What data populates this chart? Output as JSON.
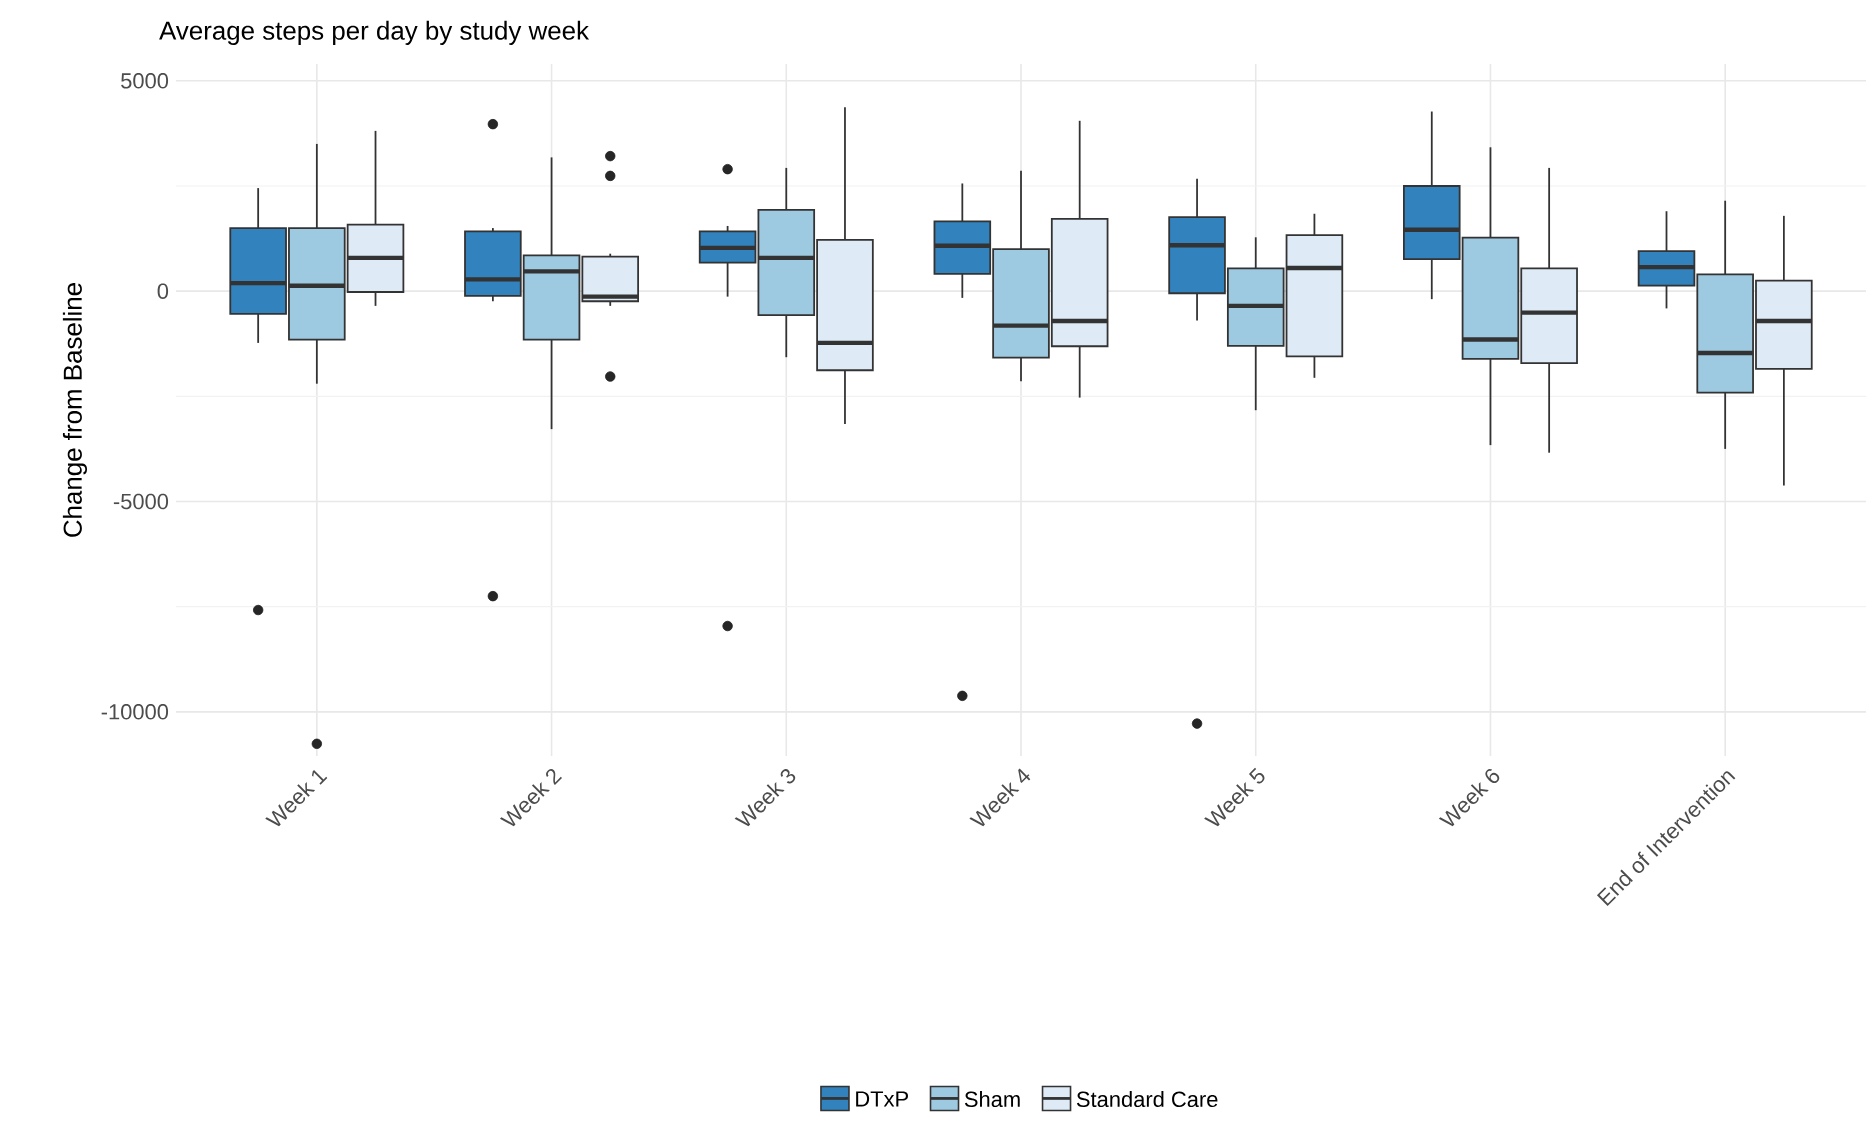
{
  "chart_data": {
    "type": "box",
    "title": "Average steps per day by study week",
    "ylabel": "Change from Baseline",
    "categories": [
      "Week 1",
      "Week 2",
      "Week 3",
      "Week 4",
      "Week 5",
      "Week 6",
      "End of Intervention"
    ],
    "ylim": [
      -11050,
      5400
    ],
    "yticks": [
      -10000,
      -5000,
      0,
      5000
    ],
    "grid": true,
    "legend": "bottom",
    "series": [
      {
        "name": "DTxP",
        "color": "#3182bd",
        "boxes": [
          {
            "low": -1230,
            "q1": -540,
            "median": 190,
            "q3": 1500,
            "high": 2450,
            "outliers": [
              -7580
            ]
          },
          {
            "low": -240,
            "q1": -110,
            "median": 280,
            "q3": 1420,
            "high": 1500,
            "outliers": [
              3970,
              -7250
            ]
          },
          {
            "low": -130,
            "q1": 680,
            "median": 1030,
            "q3": 1420,
            "high": 1550,
            "outliers": [
              2900,
              -7960
            ]
          },
          {
            "low": -160,
            "q1": 410,
            "median": 1080,
            "q3": 1660,
            "high": 2560,
            "outliers": [
              -9620
            ]
          },
          {
            "low": -700,
            "q1": -50,
            "median": 1090,
            "q3": 1760,
            "high": 2670,
            "outliers": [
              -10280
            ]
          },
          {
            "low": -190,
            "q1": 760,
            "median": 1460,
            "q3": 2500,
            "high": 4270
          },
          {
            "low": -410,
            "q1": 130,
            "median": 570,
            "q3": 950,
            "high": 1900
          }
        ]
      },
      {
        "name": "Sham",
        "color": "#9ecae1",
        "boxes": [
          {
            "low": -2200,
            "q1": -1150,
            "median": 130,
            "q3": 1500,
            "high": 3500,
            "outliers": [
              -10760
            ]
          },
          {
            "low": -3280,
            "q1": -1150,
            "median": 470,
            "q3": 850,
            "high": 3180
          },
          {
            "low": -1570,
            "q1": -570,
            "median": 790,
            "q3": 1930,
            "high": 2930
          },
          {
            "low": -2140,
            "q1": -1580,
            "median": -820,
            "q3": 1000,
            "high": 2860
          },
          {
            "low": -2830,
            "q1": -1300,
            "median": -350,
            "q3": 540,
            "high": 1280
          },
          {
            "low": -3660,
            "q1": -1610,
            "median": -1150,
            "q3": 1270,
            "high": 3420
          },
          {
            "low": -3750,
            "q1": -2410,
            "median": -1470,
            "q3": 400,
            "high": 2150
          }
        ]
      },
      {
        "name": "Standard Care",
        "color": "#deebf7",
        "boxes": [
          {
            "low": -350,
            "q1": -20,
            "median": 790,
            "q3": 1580,
            "high": 3810
          },
          {
            "low": -350,
            "q1": -240,
            "median": -130,
            "q3": 820,
            "high": 890,
            "outliers": [
              3210,
              2740,
              -2030
            ]
          },
          {
            "low": -3160,
            "q1": -1880,
            "median": -1230,
            "q3": 1220,
            "high": 4370
          },
          {
            "low": -2530,
            "q1": -1310,
            "median": -710,
            "q3": 1720,
            "high": 4050
          },
          {
            "low": -2060,
            "q1": -1550,
            "median": 550,
            "q3": 1330,
            "high": 1840
          },
          {
            "low": -3840,
            "q1": -1710,
            "median": -510,
            "q3": 540,
            "high": 2930
          },
          {
            "low": -4620,
            "q1": -1850,
            "median": -710,
            "q3": 250,
            "high": 1790
          }
        ]
      }
    ]
  }
}
